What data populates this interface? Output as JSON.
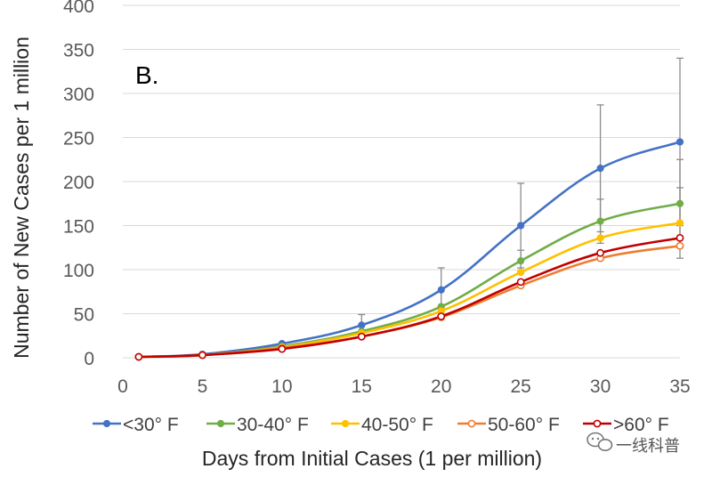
{
  "chart_data": {
    "type": "line",
    "panel_label": "B.",
    "xlabel": "Days from Initial Cases (1 per million)",
    "ylabel": "Number of New Cases per 1 million",
    "xlim": [
      0,
      35
    ],
    "ylim": [
      0,
      400
    ],
    "xticks": [
      0,
      5,
      10,
      15,
      20,
      25,
      30,
      35
    ],
    "yticks": [
      0,
      50,
      100,
      150,
      200,
      250,
      300,
      350,
      400
    ],
    "grid": true,
    "legend_position": "bottom",
    "x": [
      1,
      5,
      10,
      15,
      20,
      25,
      30,
      35
    ],
    "series": [
      {
        "name": "<30° F",
        "color": "#4472C4",
        "marker": "circle-filled",
        "values": [
          1,
          4,
          16,
          37,
          77,
          150,
          215,
          245
        ],
        "errors": [
          0,
          0,
          0,
          12,
          25,
          48,
          72,
          95
        ]
      },
      {
        "name": "30-40° F",
        "color": "#70AD47",
        "marker": "circle-filled",
        "values": [
          1,
          3,
          13,
          30,
          58,
          110,
          155,
          175
        ],
        "errors": [
          0,
          0,
          0,
          0,
          0,
          12,
          25,
          50
        ]
      },
      {
        "name": "40-50° F",
        "color": "#FFC000",
        "marker": "circle-filled",
        "values": [
          1,
          3,
          12,
          28,
          53,
          97,
          136,
          153
        ],
        "errors": [
          0,
          0,
          0,
          0,
          0,
          0,
          0,
          40
        ]
      },
      {
        "name": "50-60° F",
        "color": "#ED7D31",
        "marker": "circle-open",
        "values": [
          1,
          3,
          11,
          24,
          46,
          82,
          113,
          127
        ],
        "errors": [
          0,
          0,
          0,
          0,
          0,
          0,
          0,
          0
        ]
      },
      {
        "name": ">60° F",
        "color": "#C00000",
        "marker": "circle-open",
        "values": [
          1,
          3,
          10,
          24,
          47,
          86,
          119,
          136
        ],
        "errors": [
          0,
          0,
          0,
          0,
          0,
          0,
          0,
          0
        ]
      }
    ]
  },
  "watermark": {
    "text": "一线科普",
    "icon": "wechat-icon"
  }
}
